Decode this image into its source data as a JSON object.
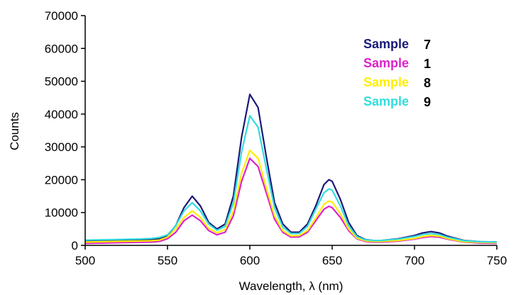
{
  "chart_data": {
    "type": "line",
    "xlabel": "Wavelength,  λ (nm)",
    "ylabel": "Counts",
    "xlim": [
      500,
      750
    ],
    "ylim": [
      0,
      70000
    ],
    "x_ticks": [
      500,
      550,
      600,
      650,
      700,
      750
    ],
    "y_ticks": [
      0,
      10000,
      20000,
      30000,
      40000,
      50000,
      60000,
      70000
    ],
    "grid": false,
    "legend_position": "top-right",
    "x": [
      500,
      510,
      520,
      530,
      540,
      545,
      550,
      555,
      560,
      565,
      570,
      575,
      580,
      585,
      590,
      595,
      600,
      605,
      610,
      615,
      620,
      625,
      630,
      635,
      640,
      645,
      648,
      650,
      655,
      660,
      665,
      670,
      675,
      680,
      690,
      700,
      705,
      710,
      715,
      720,
      730,
      740,
      750
    ],
    "series": [
      {
        "name": "Sample",
        "label_number": "7",
        "color": "#1a1a7a",
        "values": [
          1200,
          1300,
          1400,
          1500,
          1700,
          2000,
          3000,
          6000,
          11500,
          15000,
          12000,
          7000,
          5000,
          6500,
          15000,
          33000,
          46000,
          42000,
          27000,
          13000,
          6500,
          4000,
          4000,
          6500,
          12000,
          18500,
          20000,
          19500,
          14000,
          7000,
          3000,
          1800,
          1500,
          1500,
          2000,
          3000,
          3800,
          4200,
          3800,
          2800,
          1500,
          1100,
          1000
        ]
      },
      {
        "name": "Sample",
        "label_number": "1",
        "color": "#dd22cc",
        "values": [
          600,
          700,
          800,
          900,
          1000,
          1200,
          2000,
          4000,
          7500,
          9200,
          7500,
          4500,
          3200,
          4000,
          9000,
          19500,
          26500,
          24000,
          16000,
          8000,
          4000,
          2500,
          2600,
          4000,
          7500,
          11000,
          11900,
          11500,
          8500,
          4500,
          2000,
          1200,
          1000,
          1000,
          1300,
          1900,
          2400,
          2700,
          2500,
          1900,
          1000,
          700,
          600
        ]
      },
      {
        "name": "Sample",
        "label_number": "8",
        "color": "#ffee00",
        "values": [
          1000,
          1100,
          1200,
          1300,
          1400,
          1600,
          2500,
          5000,
          8500,
          10500,
          8500,
          5200,
          3800,
          4800,
          10500,
          22000,
          29000,
          26500,
          17500,
          9000,
          4500,
          2900,
          3000,
          4500,
          8300,
          12500,
          13500,
          13200,
          9600,
          5000,
          2200,
          1400,
          1200,
          1200,
          1500,
          2100,
          2700,
          3000,
          2800,
          2100,
          1100,
          900,
          800
        ]
      },
      {
        "name": "Sample",
        "label_number": "9",
        "color": "#33dddd",
        "values": [
          1600,
          1700,
          1800,
          1900,
          2100,
          2400,
          3200,
          6000,
          10500,
          13000,
          10500,
          6500,
          4600,
          5800,
          13000,
          28500,
          39500,
          36000,
          23500,
          11500,
          5600,
          3600,
          3600,
          5800,
          11000,
          16000,
          17200,
          16800,
          12000,
          6000,
          2700,
          1700,
          1500,
          1500,
          1900,
          2700,
          3300,
          3600,
          3300,
          2500,
          1400,
          1100,
          1000
        ]
      }
    ]
  }
}
